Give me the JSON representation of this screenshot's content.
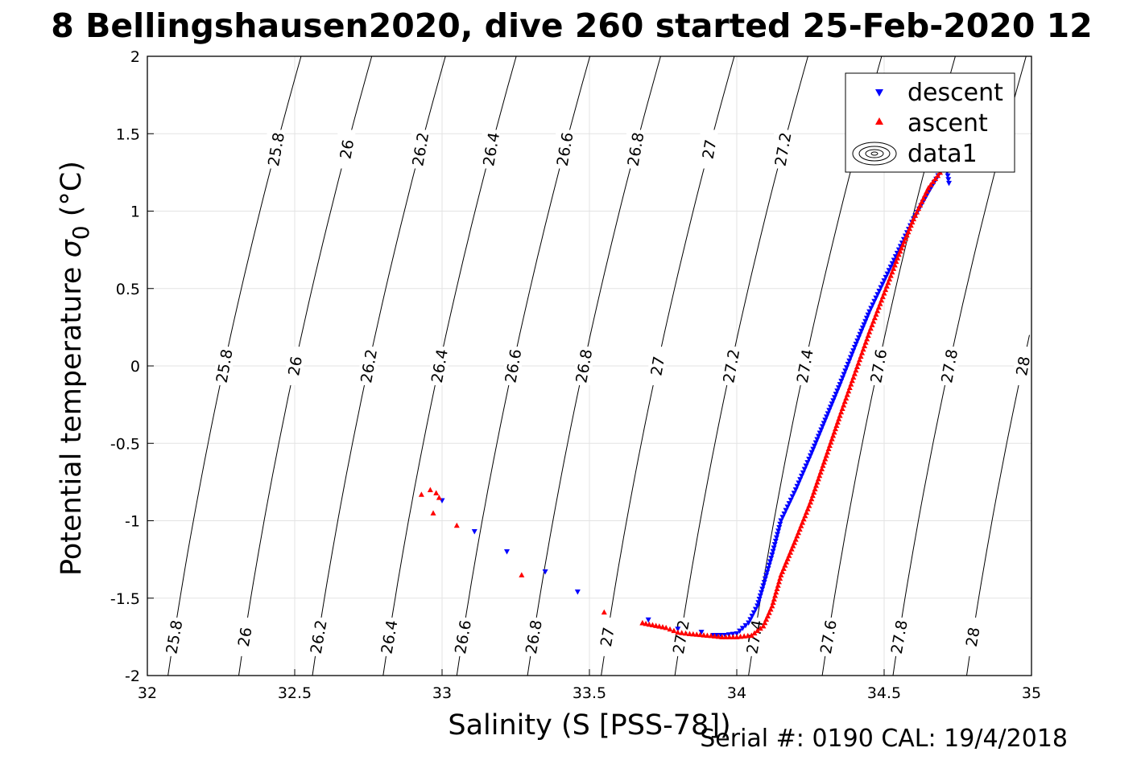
{
  "chart_data": {
    "type": "scatter",
    "title": "8 Bellingshausen2020, dive 260 started 25-Feb-2020 12",
    "xlabel": "Salinity (S [PSS-78])",
    "ylabel_main": "Potential temperature ",
    "ylabel_sigma": "σ",
    "ylabel_sub": "0",
    "ylabel_unit": " (°C)",
    "footer": "Serial #: 0190  CAL: 19/4/2018",
    "xlim": [
      32,
      35
    ],
    "ylim": [
      -2,
      2
    ],
    "grid": true,
    "legend_placement": "top-right",
    "x_ticks": [
      "32",
      "32.5",
      "33",
      "33.5",
      "34",
      "34.5",
      "35"
    ],
    "y_ticks": [
      "2",
      "1.5",
      "1",
      "0.5",
      "0",
      "-0.5",
      "-1",
      "-1.5",
      "-2"
    ],
    "legend": [
      {
        "name": "descent",
        "color": "#0000ff",
        "marker": "triangle-down"
      },
      {
        "name": "ascent",
        "color": "#ff0000",
        "marker": "triangle-up"
      },
      {
        "name": "data1",
        "color": "#000000",
        "marker": "contour"
      }
    ],
    "contour_levels": [
      "25.8",
      "26",
      "26.2",
      "26.4",
      "26.6",
      "26.8",
      "27",
      "27.2",
      "27.4",
      "27.6",
      "27.8",
      "28"
    ],
    "series": [
      {
        "name": "descent",
        "color": "#0000ff",
        "x": [
          33.0,
          33.11,
          33.22,
          33.35,
          33.46,
          33.7,
          33.8,
          33.88,
          33.92,
          33.96,
          34.0,
          34.04,
          34.07,
          34.09,
          34.12,
          34.15,
          34.2,
          34.25,
          34.3,
          34.35,
          34.4,
          34.45,
          34.5,
          34.55,
          34.6,
          34.65,
          34.69,
          34.71,
          34.72
        ],
        "y": [
          -0.87,
          -1.07,
          -1.2,
          -1.33,
          -1.46,
          -1.64,
          -1.7,
          -1.72,
          -1.74,
          -1.74,
          -1.73,
          -1.66,
          -1.55,
          -1.42,
          -1.22,
          -1.0,
          -0.8,
          -0.58,
          -0.35,
          -0.12,
          0.12,
          0.35,
          0.55,
          0.75,
          0.95,
          1.12,
          1.25,
          1.3,
          1.18
        ]
      },
      {
        "name": "ascent",
        "color": "#ff0000",
        "x": [
          32.93,
          32.96,
          32.98,
          32.99,
          32.97,
          33.05,
          33.27,
          33.55,
          33.68,
          33.76,
          33.8,
          33.84,
          33.9,
          33.95,
          34.0,
          34.05,
          34.09,
          34.12,
          34.15,
          34.2,
          34.25,
          34.3,
          34.35,
          34.4,
          34.45,
          34.5,
          34.55,
          34.6,
          34.65,
          34.69
        ],
        "y": [
          -0.83,
          -0.8,
          -0.82,
          -0.85,
          -0.95,
          -1.03,
          -1.35,
          -1.59,
          -1.66,
          -1.69,
          -1.72,
          -1.73,
          -1.74,
          -1.75,
          -1.75,
          -1.74,
          -1.68,
          -1.55,
          -1.35,
          -1.12,
          -0.88,
          -0.6,
          -0.32,
          -0.05,
          0.22,
          0.47,
          0.72,
          0.95,
          1.15,
          1.25
        ]
      }
    ]
  }
}
